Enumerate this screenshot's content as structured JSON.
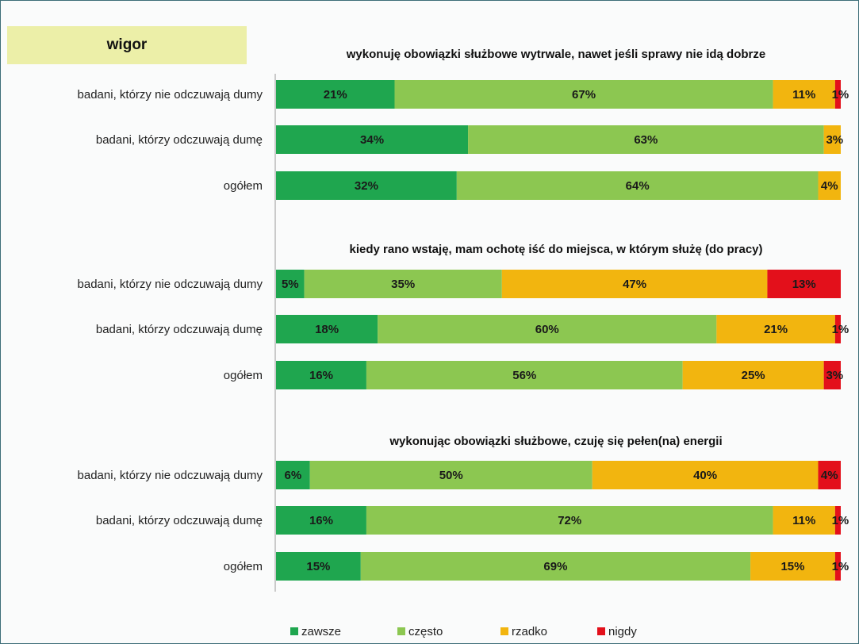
{
  "badge": "wigor",
  "chart_data": {
    "type": "bar",
    "orientation": "horizontal-stacked-100",
    "colors": {
      "zawsze": "#1fa64f",
      "często": "#8cc751",
      "rzadko": "#f2b50f",
      "nigdy": "#e3101b"
    },
    "legend": {
      "position": "bottom",
      "entries": [
        {
          "key": "zawsze",
          "label": "zawsze"
        },
        {
          "key": "często",
          "label": "często"
        },
        {
          "key": "rzadko",
          "label": "rzadko"
        },
        {
          "key": "nigdy",
          "label": "nigdy"
        }
      ]
    },
    "groups": [
      {
        "title": "wykonuję obowiązki służbowe wytrwale, nawet jeśli sprawy nie idą dobrze",
        "rows": [
          {
            "label": "badani, którzy nie odczuwają dumy",
            "values": [
              21,
              67,
              11,
              1
            ],
            "labels": [
              "21%",
              "67%",
              "11%",
              "1%"
            ]
          },
          {
            "label": "badani, którzy odczuwają dumę",
            "values": [
              34,
              63,
              3,
              0
            ],
            "labels": [
              "34%",
              "63%",
              "3%",
              ""
            ]
          },
          {
            "label": "ogółem",
            "values": [
              32,
              64,
              4,
              0
            ],
            "labels": [
              "32%",
              "64%",
              "4%",
              ""
            ]
          }
        ]
      },
      {
        "title": "kiedy rano wstaję, mam ochotę iść do miejsca, w którym służę (do pracy)",
        "rows": [
          {
            "label": "badani, którzy nie odczuwają dumy",
            "values": [
              5,
              35,
              47,
              13
            ],
            "labels": [
              "5%",
              "35%",
              "47%",
              "13%"
            ]
          },
          {
            "label": "badani, którzy odczuwają dumę",
            "values": [
              18,
              60,
              21,
              1
            ],
            "labels": [
              "18%",
              "60%",
              "21%",
              "1%"
            ]
          },
          {
            "label": "ogółem",
            "values": [
              16,
              56,
              25,
              3
            ],
            "labels": [
              "16%",
              "56%",
              "25%",
              "3%"
            ]
          }
        ]
      },
      {
        "title": "wykonując obowiązki służbowe, czuję się pełen(na) energii",
        "rows": [
          {
            "label": "badani, którzy nie odczuwają dumy",
            "values": [
              6,
              50,
              40,
              4
            ],
            "labels": [
              "6%",
              "50%",
              "40%",
              "4%"
            ]
          },
          {
            "label": "badani, którzy odczuwają dumę",
            "values": [
              16,
              72,
              11,
              1
            ],
            "labels": [
              "16%",
              "72%",
              "11%",
              "1%"
            ]
          },
          {
            "label": "ogółem",
            "values": [
              15,
              69,
              15,
              1
            ],
            "labels": [
              "15%",
              "69%",
              "15%",
              "1%"
            ]
          }
        ]
      }
    ]
  }
}
